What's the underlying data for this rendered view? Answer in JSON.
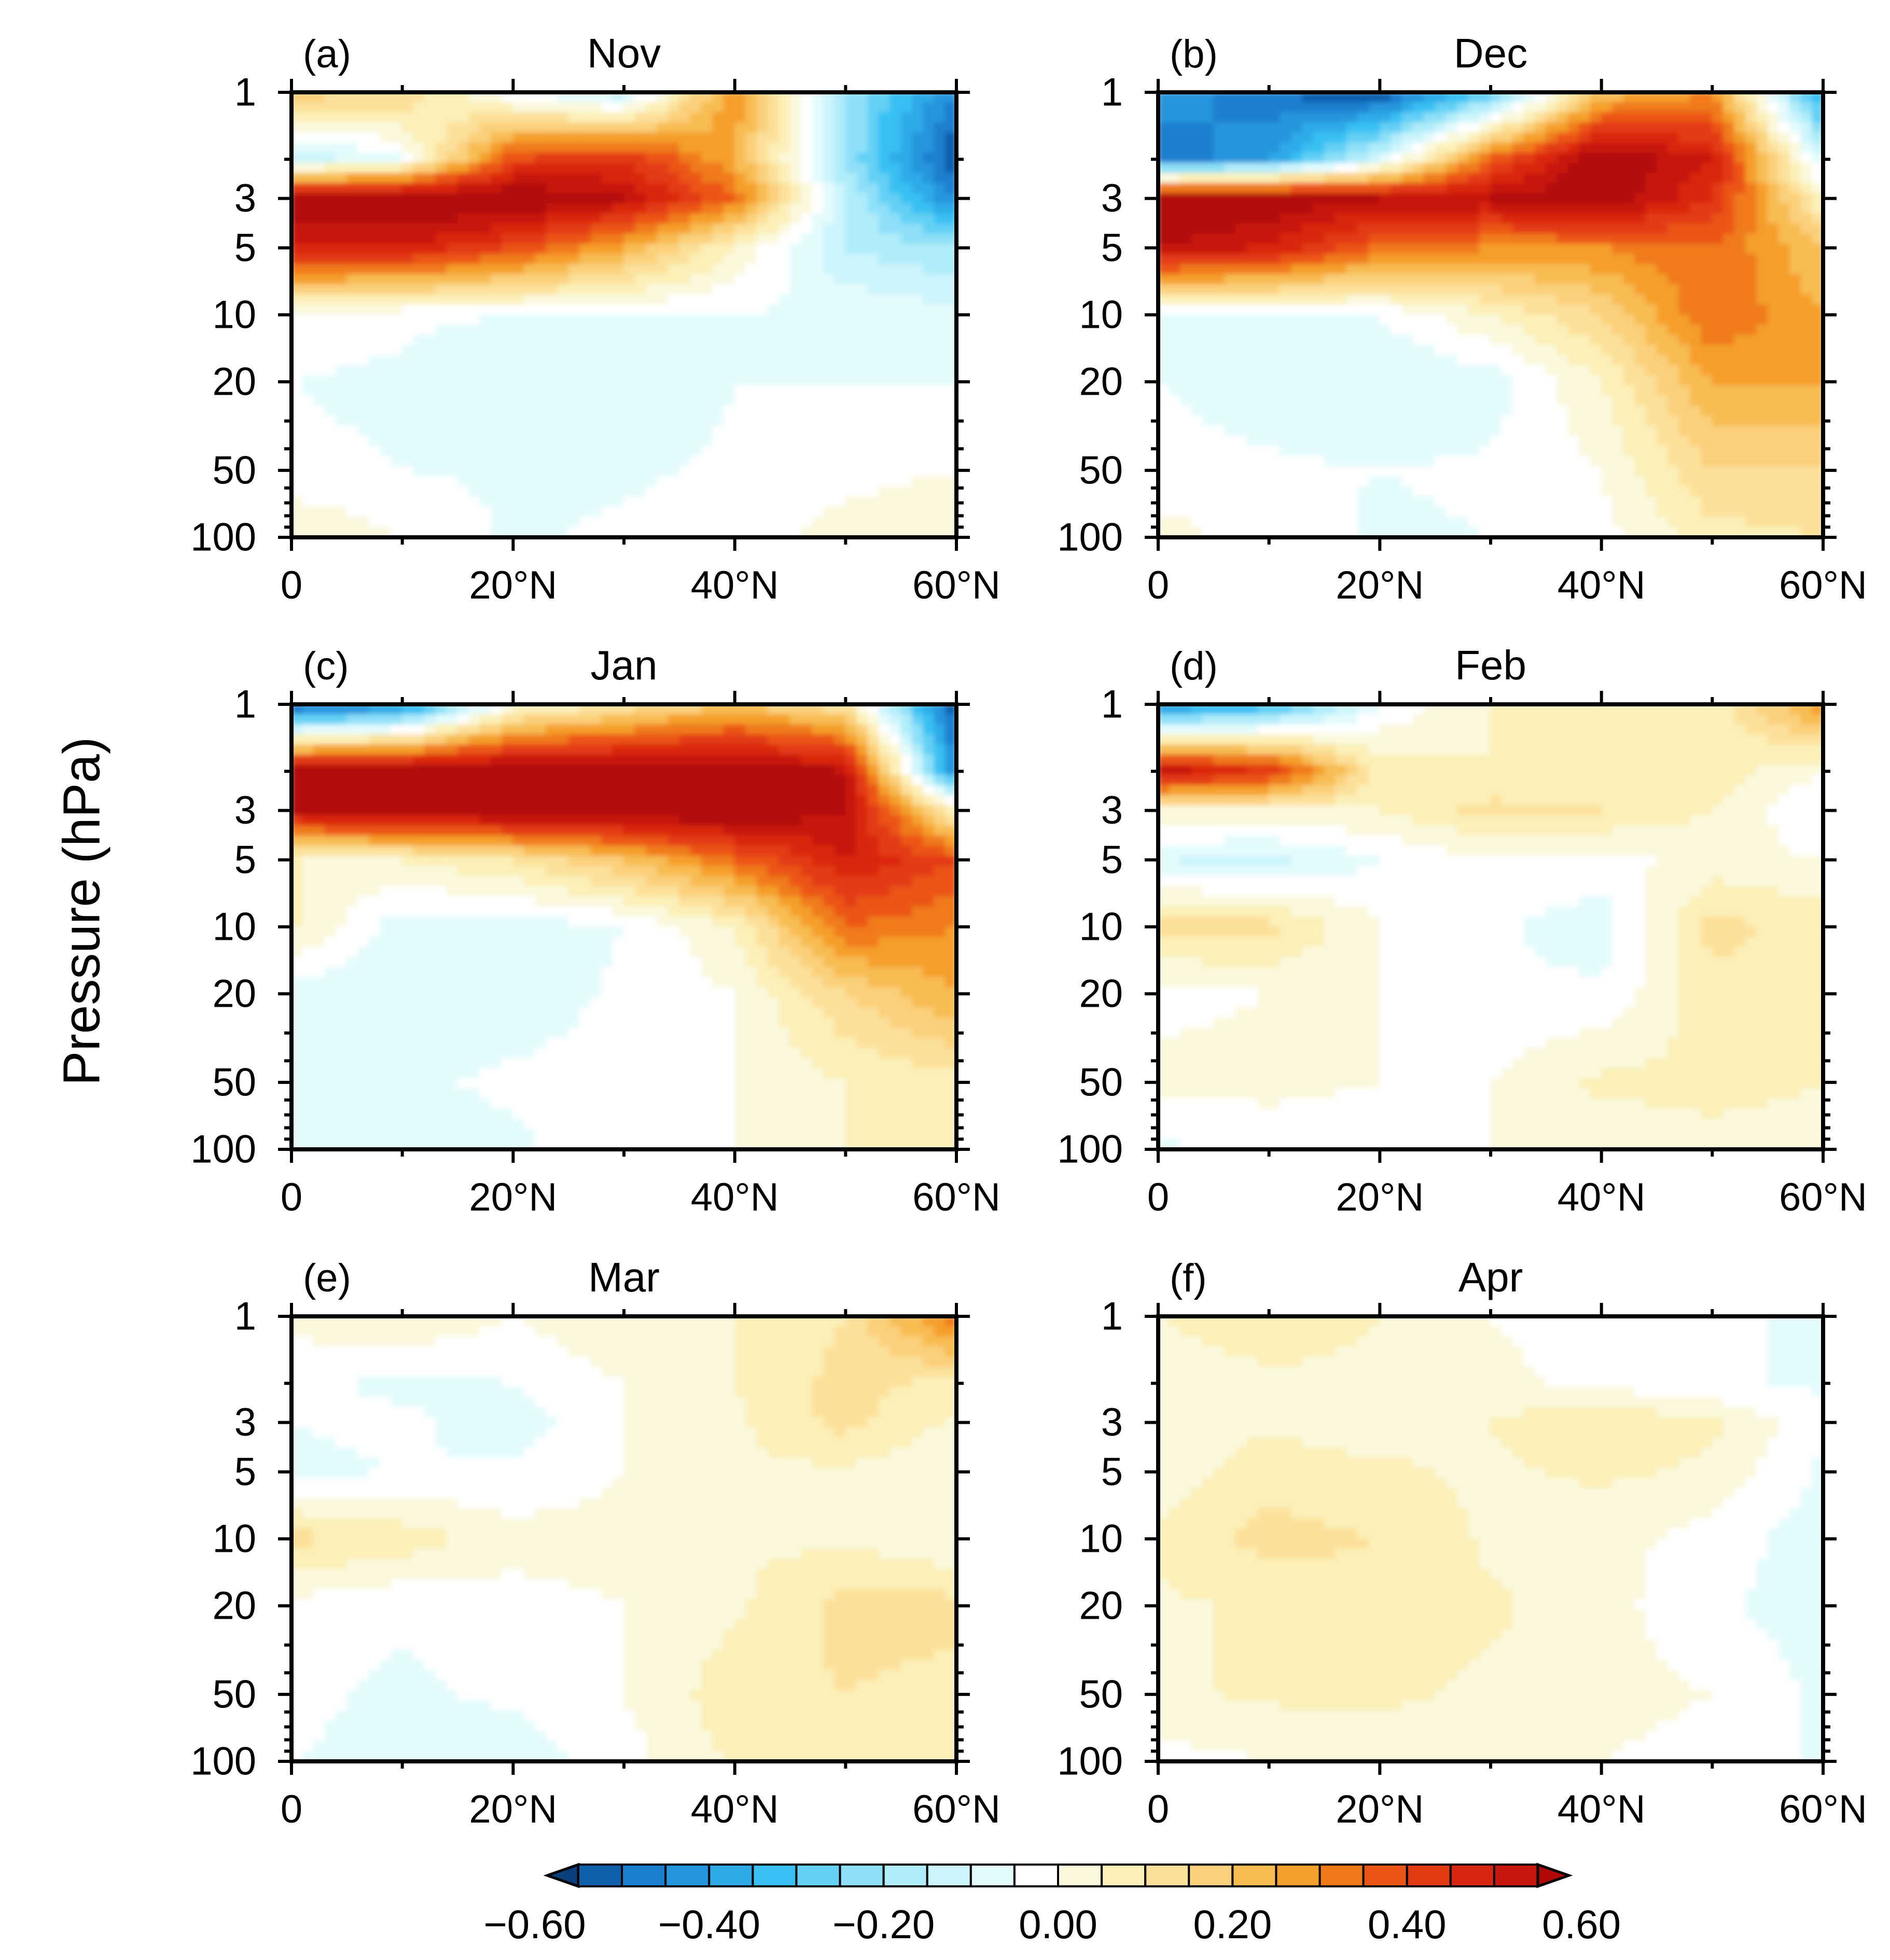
{
  "figure": {
    "ylabel": "Pressure (hPa)",
    "colorbar": {
      "tick_labels": [
        "−0.60",
        "−0.40",
        "−0.20",
        "0.00",
        "0.20",
        "0.40",
        "0.60"
      ],
      "levels": [
        -0.6,
        -0.55,
        -0.5,
        -0.45,
        -0.4,
        -0.35,
        -0.3,
        -0.25,
        -0.2,
        -0.15,
        -0.1,
        -0.05,
        0.0,
        0.05,
        0.1,
        0.15,
        0.2,
        0.25,
        0.3,
        0.35,
        0.4,
        0.45,
        0.5,
        0.55,
        0.6
      ],
      "colors": [
        "#0a3e7c",
        "#0f5fad",
        "#1b7fcf",
        "#2595dd",
        "#2eaae9",
        "#38c0f2",
        "#63d0f5",
        "#8ee0f8",
        "#b0ecfa",
        "#ccf5fc",
        "#e4fbfd",
        "#ffffff",
        "#fbf8dc",
        "#fcf0b8",
        "#fce09a",
        "#fbd07c",
        "#f8bc52",
        "#f59f2c",
        "#f07a1a",
        "#eb5515",
        "#e33a12",
        "#da2510",
        "#c8160c",
        "#b20808"
      ]
    }
  },
  "chart_data": [
    {
      "type": "heatmap",
      "panel": "(a)",
      "title": "Nov",
      "xlabel": "",
      "ylabel": "Pressure (hPa)",
      "x_tick_labels": [
        "0",
        "20°N",
        "40°N",
        "60°N"
      ],
      "y_tick_labels": [
        "1",
        "3",
        "5",
        "10",
        "20",
        "50",
        "100"
      ],
      "x_range": [
        0,
        60
      ],
      "y_range": [
        100,
        1
      ],
      "y_scale": "log",
      "x": [
        0,
        10,
        20,
        30,
        40,
        50,
        60
      ],
      "y": [
        1,
        2,
        3,
        5,
        10,
        20,
        50,
        100
      ],
      "z": [
        [
          0.18,
          0.15,
          -0.05,
          -0.15,
          0.3,
          -0.2,
          -0.45
        ],
        [
          -0.15,
          -0.05,
          0.4,
          0.45,
          0.25,
          -0.2,
          -0.55
        ],
        [
          0.62,
          0.62,
          0.62,
          0.55,
          0.35,
          -0.15,
          -0.45
        ],
        [
          0.5,
          0.5,
          0.4,
          0.25,
          0.05,
          -0.15,
          -0.2
        ],
        [
          -0.02,
          -0.04,
          -0.05,
          -0.05,
          -0.05,
          -0.06,
          -0.08
        ],
        [
          -0.05,
          -0.06,
          -0.1,
          -0.1,
          -0.05,
          -0.05,
          -0.05
        ],
        [
          -0.04,
          -0.05,
          -0.06,
          -0.06,
          -0.04,
          -0.02,
          0.0
        ],
        [
          0.05,
          0.0,
          -0.06,
          -0.04,
          -0.02,
          0.02,
          0.05
        ]
      ]
    },
    {
      "type": "heatmap",
      "panel": "(b)",
      "title": "Dec",
      "xlabel": "",
      "ylabel": "",
      "x_tick_labels": [
        "0",
        "20°N",
        "40°N",
        "60°N"
      ],
      "y_tick_labels": [
        "1",
        "3",
        "5",
        "10",
        "20",
        "50",
        "100"
      ],
      "x_range": [
        0,
        60
      ],
      "y_range": [
        100,
        1
      ],
      "y_scale": "log",
      "x": [
        0,
        10,
        20,
        30,
        40,
        50,
        60
      ],
      "y": [
        1,
        2,
        3,
        5,
        10,
        20,
        50,
        100
      ],
      "z": [
        [
          -0.4,
          -0.5,
          -0.55,
          -0.3,
          0.2,
          0.3,
          -0.4
        ],
        [
          -0.5,
          -0.4,
          -0.1,
          0.35,
          0.62,
          0.5,
          -0.1
        ],
        [
          0.62,
          0.6,
          0.55,
          0.55,
          0.6,
          0.45,
          0.05
        ],
        [
          0.55,
          0.5,
          0.35,
          0.3,
          0.3,
          0.35,
          0.2
        ],
        [
          -0.05,
          -0.05,
          -0.05,
          0.05,
          0.15,
          0.35,
          0.25
        ],
        [
          -0.05,
          -0.08,
          -0.1,
          -0.08,
          0.05,
          0.25,
          0.25
        ],
        [
          -0.03,
          -0.04,
          -0.05,
          -0.04,
          0.0,
          0.15,
          0.15
        ],
        [
          0.02,
          -0.02,
          -0.06,
          -0.05,
          -0.02,
          0.08,
          0.1
        ]
      ]
    },
    {
      "type": "heatmap",
      "panel": "(c)",
      "title": "Jan",
      "xlabel": "",
      "ylabel": "",
      "x_tick_labels": [
        "0",
        "20°N",
        "40°N",
        "60°N"
      ],
      "y_tick_labels": [
        "1",
        "3",
        "5",
        "10",
        "20",
        "50",
        "100"
      ],
      "x_range": [
        0,
        60
      ],
      "y_range": [
        100,
        1
      ],
      "y_scale": "log",
      "x": [
        0,
        10,
        20,
        30,
        40,
        50,
        60
      ],
      "y": [
        1,
        2,
        3,
        5,
        10,
        20,
        50,
        100
      ],
      "z": [
        [
          -0.55,
          -0.45,
          0.0,
          0.1,
          0.2,
          0.1,
          -0.55
        ],
        [
          0.62,
          0.62,
          0.62,
          0.62,
          0.62,
          0.55,
          -0.45
        ],
        [
          0.55,
          0.58,
          0.62,
          0.62,
          0.62,
          0.55,
          0.05
        ],
        [
          0.05,
          0.05,
          0.1,
          0.2,
          0.35,
          0.5,
          0.4
        ],
        [
          0.06,
          -0.08,
          -0.08,
          -0.05,
          0.05,
          0.35,
          0.3
        ],
        [
          -0.07,
          -0.1,
          -0.08,
          -0.04,
          0.0,
          0.15,
          0.25
        ],
        [
          -0.05,
          -0.06,
          -0.04,
          -0.03,
          0.0,
          0.05,
          0.08
        ],
        [
          -0.06,
          -0.08,
          -0.06,
          -0.02,
          0.0,
          0.05,
          0.08
        ]
      ]
    },
    {
      "type": "heatmap",
      "panel": "(d)",
      "title": "Feb",
      "xlabel": "",
      "ylabel": "",
      "x_tick_labels": [
        "0",
        "20°N",
        "40°N",
        "60°N"
      ],
      "y_tick_labels": [
        "1",
        "3",
        "5",
        "10",
        "20",
        "50",
        "100"
      ],
      "x_range": [
        0,
        60
      ],
      "y_range": [
        100,
        1
      ],
      "y_scale": "log",
      "x": [
        0,
        10,
        20,
        30,
        40,
        50,
        60
      ],
      "y": [
        1,
        2,
        3,
        5,
        10,
        20,
        50,
        100
      ],
      "z": [
        [
          -0.45,
          -0.35,
          -0.05,
          0.05,
          0.05,
          0.05,
          0.3
        ],
        [
          0.55,
          0.45,
          0.08,
          0.05,
          0.05,
          0.08,
          0.0
        ],
        [
          0.05,
          0.05,
          0.05,
          0.12,
          0.1,
          0.05,
          -0.05
        ],
        [
          -0.1,
          -0.12,
          -0.05,
          0.0,
          -0.02,
          0.02,
          0.0
        ],
        [
          0.12,
          0.12,
          0.0,
          -0.04,
          -0.08,
          0.12,
          0.08
        ],
        [
          -0.02,
          0.0,
          0.0,
          -0.04,
          -0.04,
          0.08,
          0.06
        ],
        [
          0.02,
          0.02,
          0.0,
          0.0,
          0.06,
          0.06,
          0.05
        ],
        [
          -0.06,
          -0.04,
          -0.04,
          0.0,
          0.02,
          0.04,
          0.04
        ]
      ]
    },
    {
      "type": "heatmap",
      "panel": "(e)",
      "title": "Mar",
      "xlabel": "",
      "ylabel": "",
      "x_tick_labels": [
        "0",
        "20°N",
        "40°N",
        "60°N"
      ],
      "y_tick_labels": [
        "1",
        "3",
        "5",
        "10",
        "20",
        "50",
        "100"
      ],
      "x_range": [
        0,
        60
      ],
      "y_range": [
        100,
        1
      ],
      "y_scale": "log",
      "x": [
        0,
        10,
        20,
        30,
        40,
        50,
        60
      ],
      "y": [
        1,
        2,
        3,
        5,
        10,
        20,
        50,
        100
      ],
      "z": [
        [
          0.02,
          0.05,
          0.0,
          0.05,
          0.05,
          0.1,
          0.35
        ],
        [
          -0.04,
          -0.06,
          -0.05,
          0.0,
          0.05,
          0.12,
          0.08
        ],
        [
          -0.05,
          -0.04,
          -0.08,
          0.0,
          0.04,
          0.12,
          0.04
        ],
        [
          -0.06,
          -0.05,
          -0.04,
          0.0,
          0.04,
          0.04,
          0.0
        ],
        [
          0.12,
          0.08,
          0.02,
          0.02,
          0.04,
          0.04,
          0.0
        ],
        [
          -0.02,
          -0.04,
          -0.02,
          0.0,
          0.04,
          0.12,
          0.12
        ],
        [
          -0.04,
          -0.06,
          -0.04,
          0.0,
          0.08,
          0.1,
          0.08
        ],
        [
          -0.05,
          -0.06,
          -0.08,
          -0.02,
          0.06,
          0.08,
          0.06
        ]
      ]
    },
    {
      "type": "heatmap",
      "panel": "(f)",
      "title": "Apr",
      "xlabel": "",
      "ylabel": "",
      "x_tick_labels": [
        "0",
        "20°N",
        "40°N",
        "60°N"
      ],
      "y_tick_labels": [
        "1",
        "3",
        "5",
        "10",
        "20",
        "50",
        "100"
      ],
      "x_range": [
        0,
        60
      ],
      "y_range": [
        100,
        1
      ],
      "y_scale": "log",
      "x": [
        0,
        10,
        20,
        30,
        40,
        50,
        60
      ],
      "y": [
        1,
        2,
        3,
        5,
        10,
        20,
        50,
        100
      ],
      "z": [
        [
          0.05,
          0.08,
          0.05,
          0.0,
          -0.04,
          -0.04,
          -0.06
        ],
        [
          0.02,
          0.04,
          0.04,
          0.02,
          -0.02,
          -0.04,
          -0.06
        ],
        [
          0.02,
          0.04,
          0.02,
          0.05,
          0.1,
          0.06,
          -0.04
        ],
        [
          0.02,
          0.08,
          0.06,
          0.04,
          0.06,
          0.04,
          -0.06
        ],
        [
          0.06,
          0.12,
          0.1,
          0.04,
          0.02,
          -0.02,
          -0.08
        ],
        [
          0.04,
          0.06,
          0.08,
          0.06,
          0.02,
          -0.04,
          -0.08
        ],
        [
          0.04,
          0.06,
          0.06,
          0.04,
          0.02,
          0.0,
          -0.06
        ],
        [
          -0.02,
          0.0,
          0.02,
          0.02,
          0.0,
          -0.02,
          -0.06
        ]
      ]
    }
  ]
}
